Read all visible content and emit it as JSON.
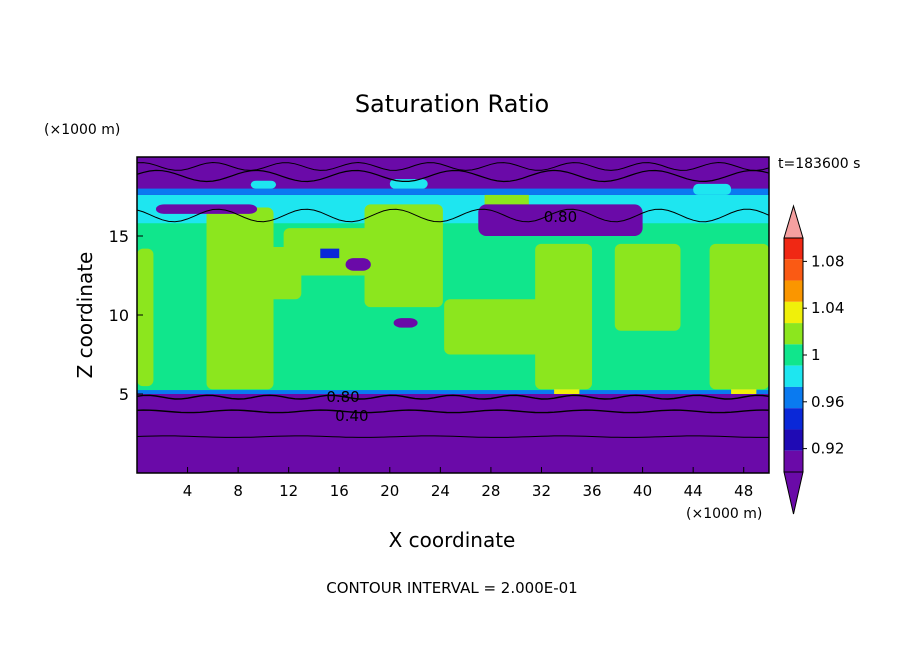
{
  "chart_data": {
    "type": "heatmap",
    "title": "Saturation Ratio",
    "xlabel": "X coordinate",
    "ylabel": "Z coordinate",
    "x_unit": "(×1000 m)",
    "y_unit": "(×1000 m)",
    "time_label": "t=183600 s",
    "footer": "CONTOUR INTERVAL = 2.000E-01",
    "xlim": [
      0,
      50
    ],
    "ylim": [
      0,
      20
    ],
    "x_ticks": [
      4,
      8,
      12,
      16,
      20,
      24,
      28,
      32,
      36,
      40,
      44,
      48
    ],
    "y_ticks": [
      5,
      10,
      15
    ],
    "contour_labels": [
      {
        "text": "0.80",
        "x": 33.5,
        "y": 16.2
      },
      {
        "text": "0.80",
        "x": 16.3,
        "y": 4.8
      },
      {
        "text": "0.40",
        "x": 17.0,
        "y": 3.6
      }
    ],
    "colorbar": {
      "labels": [
        "1.08",
        "1.04",
        "1",
        "0.96",
        "0.92"
      ],
      "levels": [
        0.9,
        0.92,
        0.94,
        0.96,
        0.98,
        1.0,
        1.02,
        1.04,
        1.06,
        1.08,
        1.1
      ],
      "colors": [
        "#6a0aa8",
        "#1f0ab4",
        "#0a28d8",
        "#0a7af0",
        "#1ee6f0",
        "#10e68c",
        "#8ce61e",
        "#f0f00a",
        "#fa9600",
        "#fa5a14",
        "#f02814",
        "#f5a0a0"
      ],
      "under_color": "#6a0aa8",
      "over_color": "#f5a0a0"
    },
    "regions": {
      "lower_layer_top_z": 5.2,
      "upper_layer_bottom_z": 17.0,
      "cloud_columns": [
        {
          "x0": 0.0,
          "x1": 1.3,
          "z0": 5.5,
          "z1": 14.2
        },
        {
          "x0": 5.5,
          "x1": 10.8,
          "z0": 5.3,
          "z1": 16.8
        },
        {
          "x0": 9.0,
          "x1": 13.0,
          "z0": 11.0,
          "z1": 14.3
        },
        {
          "x0": 11.6,
          "x1": 21.8,
          "z0": 12.5,
          "z1": 15.5
        },
        {
          "x0": 18.0,
          "x1": 24.2,
          "z0": 10.5,
          "z1": 17.0
        },
        {
          "x0": 24.3,
          "x1": 33.0,
          "z0": 7.5,
          "z1": 11.0
        },
        {
          "x0": 31.5,
          "x1": 36.0,
          "z0": 5.3,
          "z1": 14.5
        },
        {
          "x0": 37.8,
          "x1": 43.0,
          "z0": 9.0,
          "z1": 14.5
        },
        {
          "x0": 45.3,
          "x1": 50.0,
          "z0": 5.3,
          "z1": 14.5
        },
        {
          "x0": 27.5,
          "x1": 31.0,
          "z0": 16.5,
          "z1": 18.2
        }
      ]
    }
  }
}
